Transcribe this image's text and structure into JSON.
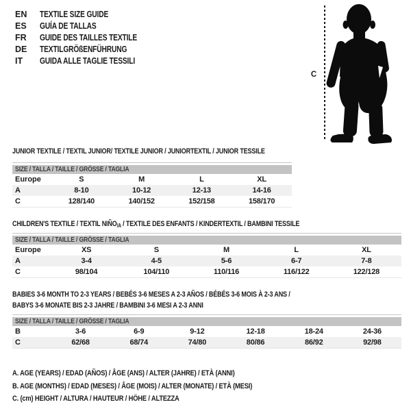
{
  "languages": {
    "items": [
      {
        "code": "EN",
        "label": "TEXTILE SIZE GUIDE"
      },
      {
        "code": "ES",
        "label": "GUÍA DE TALLAS"
      },
      {
        "code": "FR",
        "label": "GUIDE DES TAILLES TEXTILE"
      },
      {
        "code": "DE",
        "label": "TEXTILGRÖßENFÜHRUNG"
      },
      {
        "code": "IT",
        "label": "GUIDA ALLE TAGLIE TESSILI"
      }
    ]
  },
  "figure": {
    "icon": "baby-silhouette",
    "measure_label": "C"
  },
  "tables": [
    {
      "title_lines": [
        "JUNIOR TEXTILE / TEXTIL JUNIOR/ TEXTILE JUNIOR / JUNIORTEXTIL / JUNIOR TESSILE"
      ],
      "header": "SIZE / TALLA / TAILLE / GRÖSSE / TAGLIA",
      "rows": [
        {
          "label": "Europe",
          "cells": [
            "S",
            "M",
            "L",
            "XL"
          ],
          "shaded": false
        },
        {
          "label": "A",
          "cells": [
            "8-10",
            "10-12",
            "12-13",
            "14-16"
          ],
          "shaded": true
        },
        {
          "label": "C",
          "cells": [
            "128/140",
            "140/152",
            "152/158",
            "158/170"
          ],
          "shaded": false
        }
      ]
    },
    {
      "title_pre": "CHILDREN'S TEXTILE / TEXTIL NIÑO",
      "title_sub": "/A",
      "title_post": " / TEXTILE DES ENFANTS / KINDERTEXTIL / BAMBINI TESSILE",
      "header": "SIZE / TALLA / TAILLE / GRÖSSE / TAGLIA",
      "rows": [
        {
          "label": "Europe",
          "cells": [
            "XS",
            "S",
            "M",
            "L",
            "XL"
          ],
          "shaded": false
        },
        {
          "label": "A",
          "cells": [
            "3-4",
            "4-5",
            "5-6",
            "6-7",
            "7-8"
          ],
          "shaded": true
        },
        {
          "label": "C",
          "cells": [
            "98/104",
            "104/110",
            "110/116",
            "116/122",
            "122/128"
          ],
          "shaded": false
        }
      ]
    },
    {
      "title_lines": [
        "BABIES 3-6 MONTH TO 2-3 YEARS / BEBÉS 3-6 MESES A 2-3 AÑOS / BÉBÉS 3-6 MOIS À 2-3 ANS /",
        "BABYS 3-6 MONATE BIS 2-3 JAHRE / BAMBINI 3-6 MESI A 2-3 ANNI"
      ],
      "header": "SIZE / TALLA / TAILLE / GRÖSSE / TAGLIA",
      "rows": [
        {
          "label": "B",
          "cells": [
            "3-6",
            "6-9",
            "9-12",
            "12-18",
            "18-24",
            "24-36"
          ],
          "shaded": false
        },
        {
          "label": "C",
          "cells": [
            "62/68",
            "68/74",
            "74/80",
            "80/86",
            "86/92",
            "92/98"
          ],
          "shaded": true
        }
      ]
    }
  ],
  "footnotes": [
    "A. AGE (YEARS) / EDAD (AÑOS) / ÂGE (ANS) / ALTER (JAHRE) / ETÀ (ANNI)",
    "B. AGE (MONTHS) / EDAD (MESES) / ÂGE (MOIS) / ALTER (MONATE) / ETÀ (MESI)",
    "C. (cm) HEIGHT / ALTURA / HAUTEUR / HÖHE / ALTEZZA"
  ],
  "colors": {
    "header_bar": "#c3c3c3",
    "row_stripe": "#f0f0f0",
    "text": "#1b1b1b",
    "silhouette": "#0c0c0c"
  }
}
